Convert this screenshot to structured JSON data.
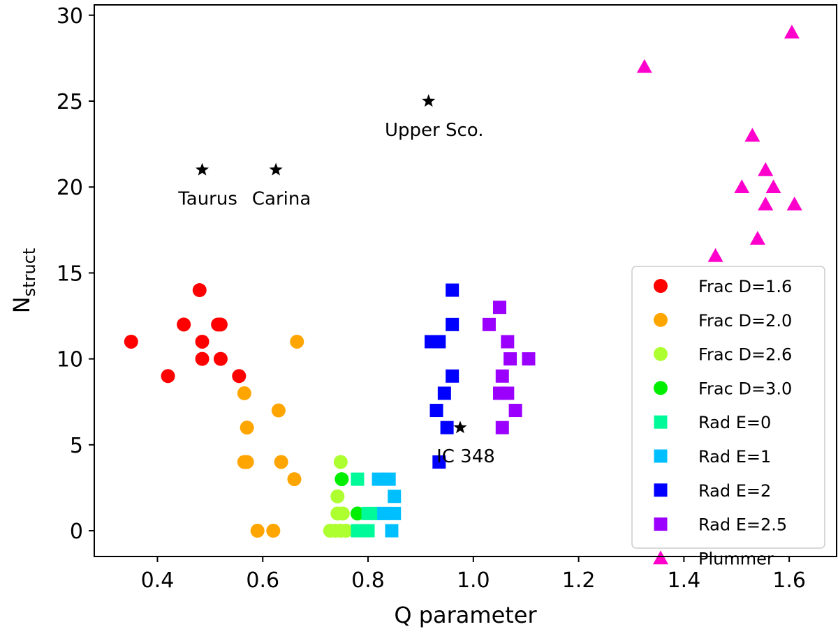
{
  "chart_data": {
    "type": "scatter",
    "xlabel": "Q parameter",
    "ylabel": {
      "main": "N",
      "sub": "struct"
    },
    "xlim": [
      0.28,
      1.69
    ],
    "ylim": [
      -1.5,
      30.6
    ],
    "xticks": [
      0.4,
      0.6,
      0.8,
      1.0,
      1.2,
      1.4,
      1.6
    ],
    "xtick_labels": [
      "0.4",
      "0.6",
      "0.8",
      "1.0",
      "1.2",
      "1.4",
      "1.6"
    ],
    "yticks": [
      0,
      5,
      10,
      15,
      20,
      25,
      30
    ],
    "ytick_labels": [
      "0",
      "5",
      "10",
      "15",
      "20",
      "25",
      "30"
    ],
    "legend_position": "lower-right",
    "series": [
      {
        "name": "Frac D=1.6",
        "marker": "circle",
        "color": "#ff0000",
        "x": [
          0.35,
          0.42,
          0.45,
          0.48,
          0.485,
          0.485,
          0.515,
          0.52,
          0.52,
          0.555
        ],
        "y": [
          11,
          9,
          12,
          14,
          11,
          10,
          12,
          12,
          10,
          9
        ]
      },
      {
        "name": "Frac D=2.0",
        "marker": "circle",
        "color": "#ffa500",
        "x": [
          0.565,
          0.57,
          0.565,
          0.57,
          0.59,
          0.62,
          0.63,
          0.635,
          0.66,
          0.665
        ],
        "y": [
          8,
          6,
          4,
          4,
          0,
          0,
          7,
          4,
          3,
          11
        ]
      },
      {
        "name": "Frac D=2.6",
        "marker": "circle",
        "color": "#adff2f",
        "x": [
          0.748,
          0.742,
          0.742,
          0.752,
          0.728,
          0.738,
          0.748,
          0.758
        ],
        "y": [
          4,
          2,
          1,
          1,
          0,
          0,
          0,
          0
        ]
      },
      {
        "name": "Frac D=3.0",
        "marker": "circle",
        "color": "#00ee00",
        "x": [
          0.75,
          0.78
        ],
        "y": [
          3,
          1
        ]
      },
      {
        "name": "Rad E=0",
        "marker": "square",
        "color": "#00fa9a",
        "x": [
          0.78,
          0.8,
          0.78,
          0.8,
          0.82,
          0.79
        ],
        "y": [
          3,
          1,
          0,
          0,
          1,
          0
        ]
      },
      {
        "name": "Rad E=1",
        "marker": "square",
        "color": "#00bfff",
        "x": [
          0.82,
          0.84,
          0.85,
          0.83,
          0.85,
          0.845
        ],
        "y": [
          3,
          3,
          2,
          1,
          1,
          0
        ]
      },
      {
        "name": "Rad E=2",
        "marker": "square",
        "color": "#0000ff",
        "x": [
          0.96,
          0.96,
          0.92,
          0.935,
          0.96,
          0.945,
          0.93,
          0.95,
          0.935
        ],
        "y": [
          14,
          12,
          11,
          11,
          9,
          8,
          7,
          6,
          4
        ]
      },
      {
        "name": "Rad E=2.5",
        "marker": "square",
        "color": "#9b00ff",
        "x": [
          1.05,
          1.03,
          1.065,
          1.07,
          1.105,
          1.055,
          1.05,
          1.065,
          1.08,
          1.055
        ],
        "y": [
          13,
          12,
          11,
          10,
          10,
          9,
          8,
          8,
          7,
          6
        ]
      },
      {
        "name": "Plummer",
        "marker": "triangle",
        "color": "#ff00cc",
        "x": [
          1.325,
          1.605,
          1.53,
          1.555,
          1.51,
          1.57,
          1.555,
          1.61,
          1.54,
          1.46
        ],
        "y": [
          27,
          29,
          23,
          21,
          20,
          20,
          19,
          19,
          17,
          16
        ]
      }
    ],
    "annotations": [
      {
        "label": "Taurus",
        "x": 0.485,
        "y": 21
      },
      {
        "label": "Carina",
        "x": 0.625,
        "y": 21
      },
      {
        "label": "Upper Sco.",
        "x": 0.915,
        "y": 25
      },
      {
        "label": "IC 348",
        "x": 0.975,
        "y": 6
      }
    ]
  }
}
